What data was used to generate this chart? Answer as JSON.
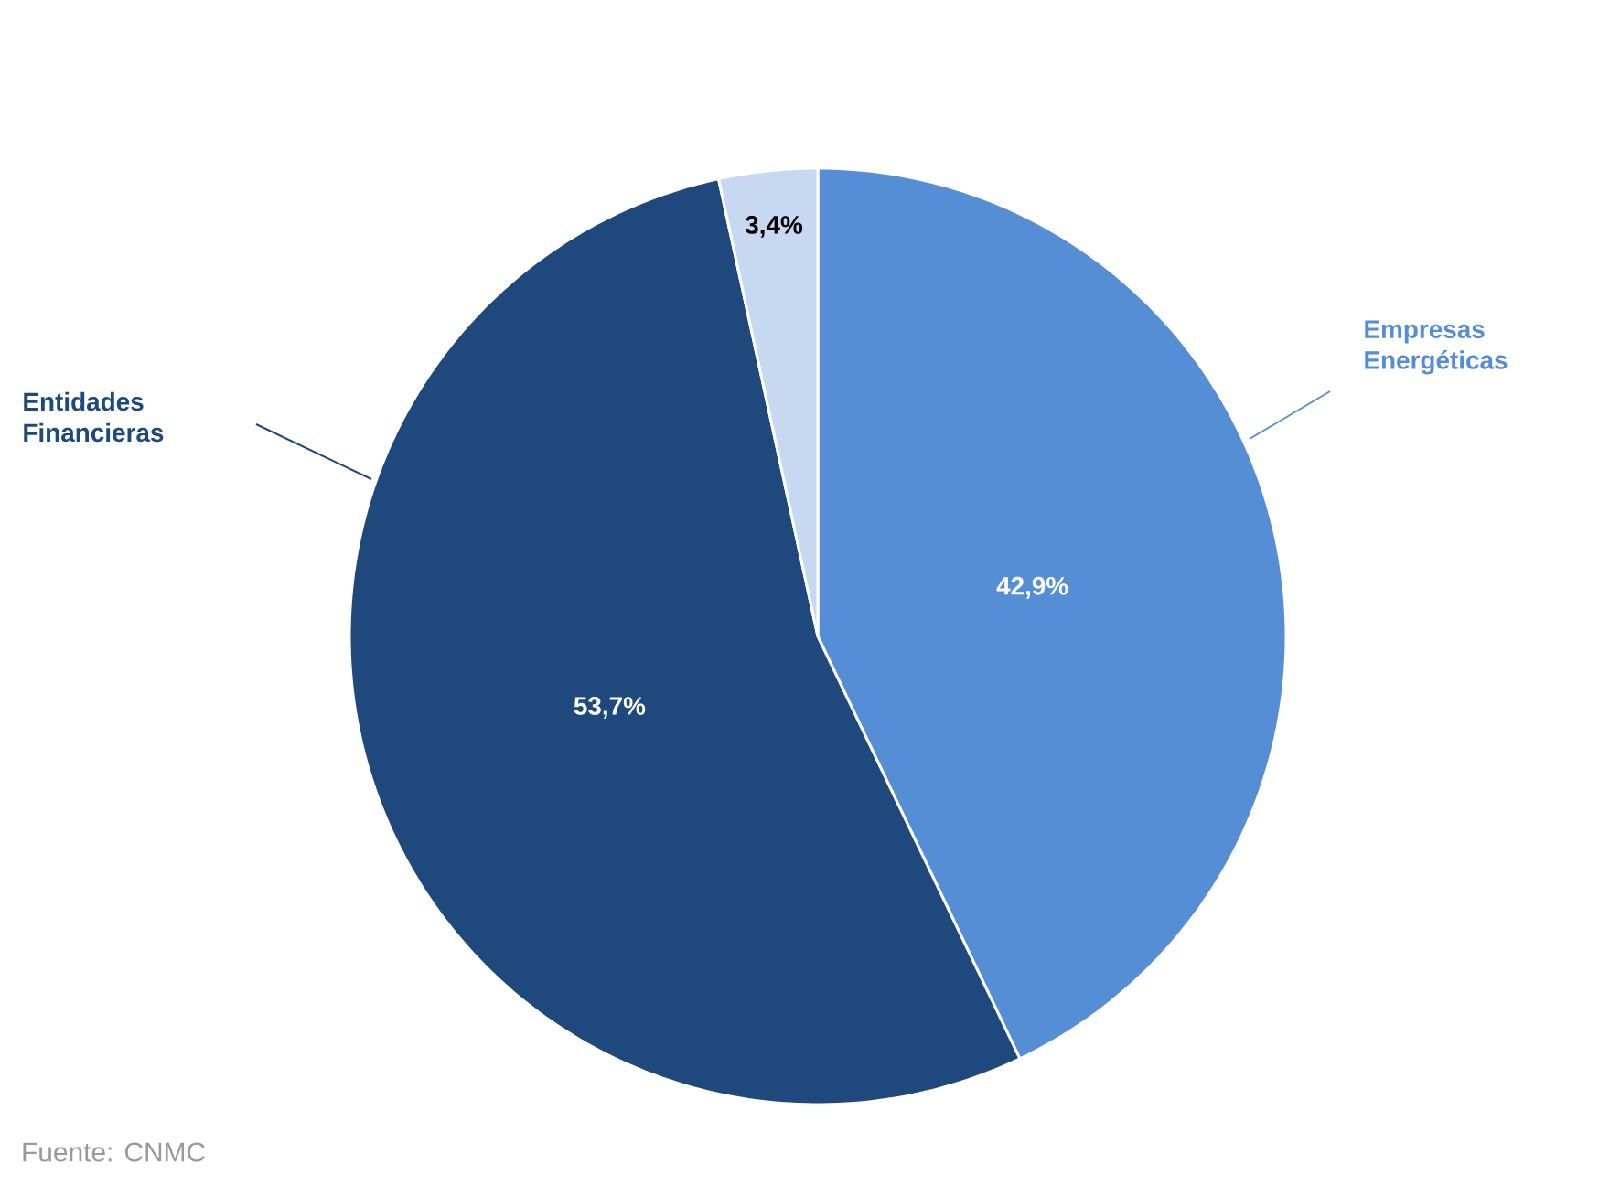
{
  "chart_data": {
    "type": "pie",
    "categories": [
      "Empresas Energéticas",
      "Entidades Financieras",
      null
    ],
    "values": [
      42.9,
      53.7,
      3.4
    ],
    "colors": [
      "#558ed5",
      "#1f497d",
      "#c6d9f1"
    ],
    "value_labels": [
      "42,9%",
      "53,7%",
      "3,4%"
    ],
    "annotations": [
      "Fuente: CNMC"
    ]
  }
}
